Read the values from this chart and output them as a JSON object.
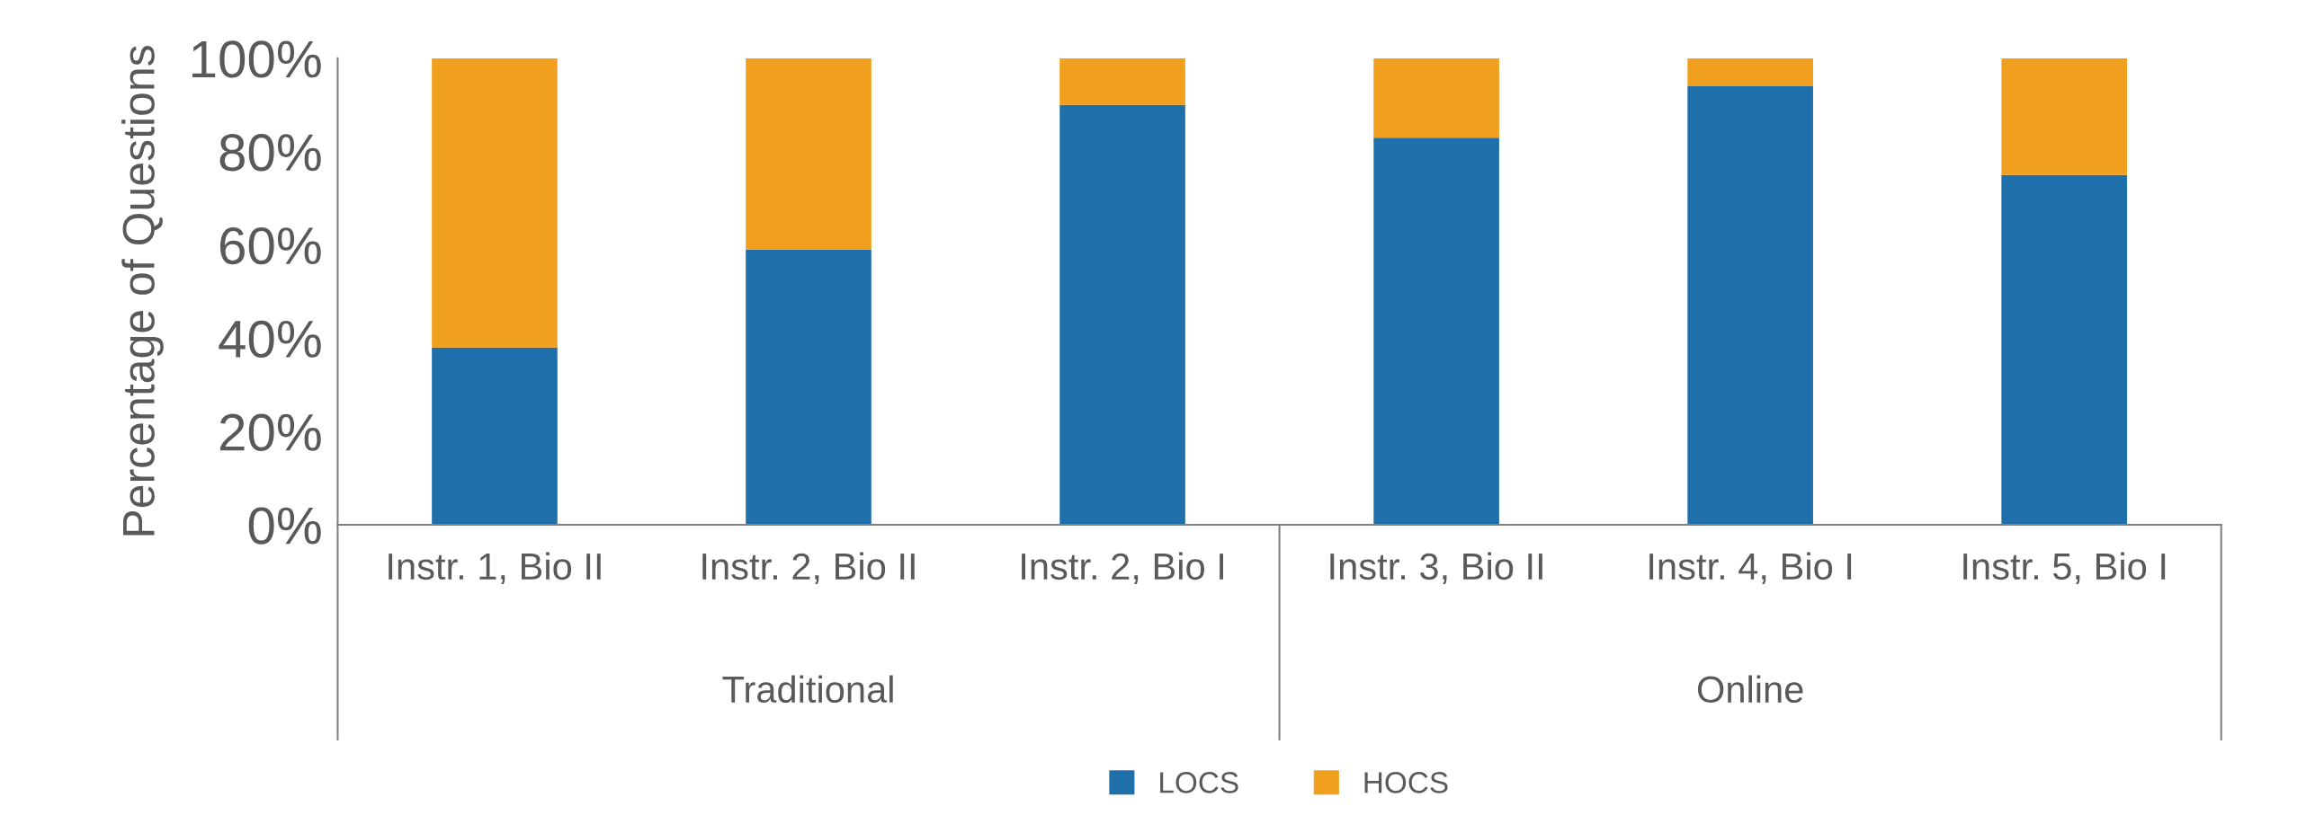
{
  "chart_data": {
    "type": "bar",
    "stacked": true,
    "ylabel": "Percentage of Questions",
    "categories": [
      "Instr. 1, Bio II",
      "Instr. 2, Bio II",
      "Instr. 2, Bio I",
      "Instr. 3, Bio II",
      "Instr. 4, Bio I",
      "Instr. 5, Bio I"
    ],
    "series": [
      {
        "name": "LOCS",
        "color": "#1f6fab",
        "values": [
          38,
          59,
          90,
          83,
          94,
          75
        ]
      },
      {
        "name": "HOCS",
        "color": "#f0a01e",
        "values": [
          62,
          41,
          10,
          17,
          6,
          25
        ]
      }
    ],
    "annotations": [
      "Traditional",
      "Online"
    ],
    "ylim": [
      0,
      100
    ],
    "yticks": [
      {
        "value": 0,
        "label": "0%"
      },
      {
        "value": 20,
        "label": "20%"
      },
      {
        "value": 40,
        "label": "40%"
      },
      {
        "value": 60,
        "label": "60%"
      },
      {
        "value": 80,
        "label": "80%"
      },
      {
        "value": 100,
        "label": "100%"
      }
    ],
    "grid": false,
    "legend": "bottom"
  }
}
